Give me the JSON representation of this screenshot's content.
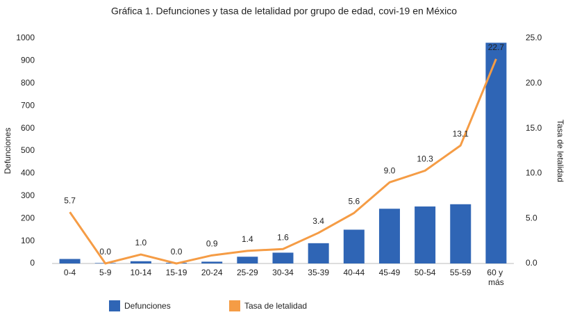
{
  "chart_data": {
    "type": "bar_line",
    "title": "Gráfica 1. Defunciones y tasa de letalidad por grupo de edad, covi-19 en México",
    "categories": [
      "0-4",
      "5-9",
      "10-14",
      "15-19",
      "20-24",
      "25-29",
      "30-34",
      "35-39",
      "40-44",
      "45-49",
      "50-54",
      "55-59",
      "60 y más"
    ],
    "y_label": "Defunciones",
    "y2_label": "Tasa de letalidad",
    "ylim": [
      0,
      1000
    ],
    "yticks": [
      0,
      100,
      200,
      300,
      400,
      500,
      600,
      700,
      800,
      900,
      1000
    ],
    "y2lim": [
      0,
      25
    ],
    "y2ticks": [
      {
        "value": 0,
        "label": "0.0"
      },
      {
        "value": 5,
        "label": "5.0"
      },
      {
        "value": 10,
        "label": "10.0"
      },
      {
        "value": 15,
        "label": "15.0"
      },
      {
        "value": 20,
        "label": "20.0"
      },
      {
        "value": 25,
        "label": "25.0"
      }
    ],
    "legend": "bottom",
    "series": [
      {
        "name": "Defunciones",
        "color": "#2f65b5",
        "kind": "bar",
        "values": [
          20,
          2,
          10,
          3,
          8,
          30,
          48,
          90,
          150,
          243,
          253,
          263,
          980
        ]
      },
      {
        "name": "Tasa de letalidad",
        "color": "#f59c45",
        "kind": "line",
        "axis": "y2",
        "values": [
          5.7,
          0,
          1,
          0,
          0.9,
          1.4,
          1.6,
          3.4,
          5.6,
          9,
          10.3,
          13.1,
          22.7
        ],
        "value_labels": [
          "5.7",
          "0.0",
          "1.0",
          "0.0",
          "0.9",
          "1.4",
          "1.6",
          "3.4",
          "5.6",
          "9.0",
          "10.3",
          "13.1",
          "22.7"
        ]
      }
    ]
  }
}
